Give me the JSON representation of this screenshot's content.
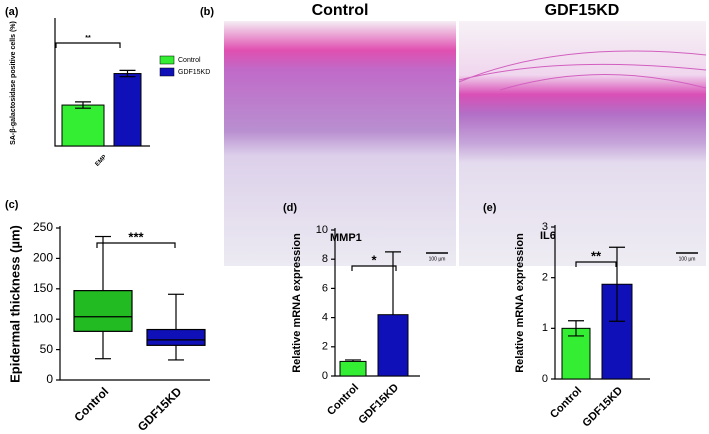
{
  "chart_data": [
    {
      "type": "bar",
      "panel": "(a)",
      "ylabel": "SA-β-galactosidase positive cells (%)",
      "categories": [
        "EMP"
      ],
      "series": [
        {
          "name": "Control",
          "color": "#33ee33",
          "values": [
            13
          ],
          "errors": [
            1
          ]
        },
        {
          "name": "GDF15KD",
          "color": "#1010b8",
          "values": [
            23
          ],
          "errors": [
            1
          ]
        }
      ],
      "ylim": [
        0,
        40
      ],
      "significance": "**"
    },
    {
      "type": "box",
      "panel": "(c)",
      "ylabel": "Epidermal thickness (µm)",
      "categories": [
        "Control",
        "GDF15KD"
      ],
      "colors": [
        "#22bb22",
        "#1010b8"
      ],
      "boxes": [
        {
          "min": 35,
          "q1": 80,
          "median": 104,
          "q3": 147,
          "max": 236
        },
        {
          "min": 33,
          "q1": 57,
          "median": 66,
          "q3": 83,
          "max": 141
        }
      ],
      "ylim": [
        0,
        250
      ],
      "yticks": [
        0,
        50,
        100,
        150,
        200,
        250
      ],
      "significance": "***"
    },
    {
      "type": "bar",
      "panel": "(d)",
      "title": "MMP1",
      "ylabel": "Relative mRNA expression",
      "categories": [
        "Control",
        "GDF15KD"
      ],
      "values": [
        1.0,
        4.2
      ],
      "errors": [
        0.1,
        4.3
      ],
      "colors": [
        "#33ee33",
        "#1010b8"
      ],
      "ylim": [
        0,
        10
      ],
      "yticks": [
        0,
        2,
        4,
        6,
        8,
        10
      ],
      "significance": "*"
    },
    {
      "type": "bar",
      "panel": "(e)",
      "title": "IL6",
      "ylabel": "Relative mRNA expression",
      "categories": [
        "Control",
        "GDF15KD"
      ],
      "values": [
        1.0,
        1.87
      ],
      "errors": [
        0.15,
        0.73
      ],
      "colors": [
        "#33ee33",
        "#1010b8"
      ],
      "ylim": [
        0,
        3
      ],
      "yticks": [
        0,
        1,
        2,
        3
      ],
      "significance": "**"
    }
  ],
  "image_panel": {
    "panel": "(b)",
    "titles": [
      "Control",
      "GDF15KD"
    ],
    "scale_bars": [
      "100 µm",
      "100 µm"
    ]
  }
}
